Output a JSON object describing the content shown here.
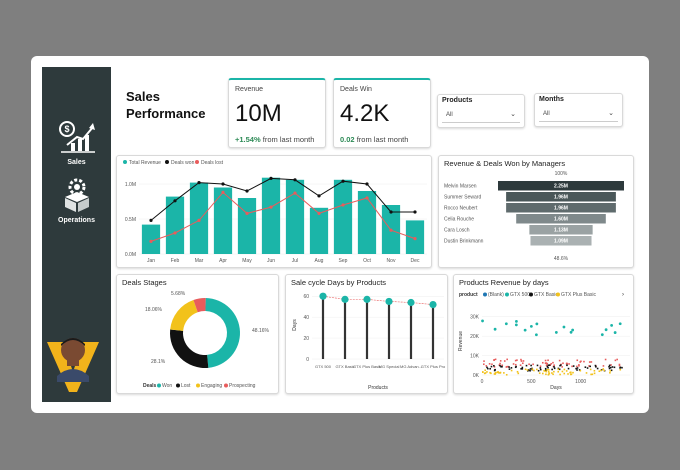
{
  "sidebar": {
    "items": [
      {
        "label": "Sales"
      },
      {
        "label": "Operations"
      }
    ]
  },
  "header": {
    "title_line1": "Sales",
    "title_line2": "Performance"
  },
  "kpis": [
    {
      "label": "Revenue",
      "value": "10M",
      "change": "+1.54%",
      "suffix": "from last month"
    },
    {
      "label": "Deals Win",
      "value": "4.2K",
      "change": "0.02",
      "suffix": "from last month"
    }
  ],
  "slicers": [
    {
      "label": "Products",
      "value": "All"
    },
    {
      "label": "Months",
      "value": "All"
    }
  ],
  "colors": {
    "teal": "#1bb5a8",
    "black": "#111111",
    "red": "#e85c5c",
    "yellow": "#f2c21b",
    "dark": "#2e3a3c"
  },
  "chart_data": [
    {
      "type": "bar",
      "title": "",
      "legend": [
        "Total Revenue",
        "Deals won",
        "Deals lost"
      ],
      "categories": [
        "Jan",
        "Feb",
        "Mar",
        "Apr",
        "May",
        "Jun",
        "Jul",
        "Aug",
        "Sep",
        "Oct",
        "Nov",
        "Dec"
      ],
      "y_ticks": [
        "0.0M",
        "0.5M",
        "1.0M"
      ],
      "ylim": [
        0,
        1.2
      ],
      "series": [
        {
          "name": "Total Revenue",
          "type": "bar",
          "values": [
            0.42,
            0.82,
            1.02,
            0.95,
            0.8,
            1.09,
            1.06,
            0.66,
            1.06,
            0.9,
            0.7,
            0.48
          ]
        },
        {
          "name": "Deals won",
          "type": "line",
          "values": [
            0.48,
            0.76,
            1.02,
            1.0,
            0.9,
            1.08,
            1.06,
            0.83,
            1.04,
            1.0,
            0.6,
            0.6
          ]
        },
        {
          "name": "Deals lost",
          "type": "line",
          "values": [
            0.18,
            0.3,
            0.48,
            0.88,
            0.58,
            0.67,
            0.87,
            0.58,
            0.7,
            0.8,
            0.34,
            0.22
          ]
        }
      ]
    },
    {
      "type": "bar",
      "title": "Revenue & Deals Won by Managers",
      "top_label": "100%",
      "bottom_label": "48.6%",
      "categories": [
        "Melvin Marsen",
        "Summer Seward",
        "Rocco Neubert",
        "Celia Rouche",
        "Cara Losch",
        "Dustin Brinkmann"
      ],
      "values": [
        2.25,
        1.96,
        1.96,
        1.6,
        1.13,
        1.09
      ],
      "labels": [
        "2.25M",
        "1.96M",
        "1.96M",
        "1.60M",
        "1.13M",
        "1.09M"
      ],
      "xlim": [
        0,
        2.25
      ]
    },
    {
      "type": "pie",
      "title": "Deals Stages",
      "legend_title": "Deals",
      "categories": [
        "Won",
        "Lost",
        "Engaging",
        "Prospecting"
      ],
      "values": [
        48.16,
        28.1,
        18.06,
        5.68
      ],
      "labels": [
        "48.16%",
        "28.1%",
        "18.06%",
        "5.68%"
      ]
    },
    {
      "type": "scatter",
      "title": "Sale cycle Days by Products",
      "categories": [
        "GTX 500",
        "GTX Basic",
        "GTX Plus Basic",
        "MG Special",
        "MG Advan...",
        "GTX Plus Pro"
      ],
      "values": [
        60,
        57,
        57,
        55,
        54,
        52
      ],
      "xlabel": "Products",
      "ylabel": "Days",
      "y_ticks": [
        "0",
        "20",
        "40",
        "60"
      ],
      "ylim": [
        0,
        65
      ]
    },
    {
      "type": "scatter",
      "title": "Products Revenue by days",
      "legend_title": "product",
      "legend": [
        "(Blank)",
        "GTX 500",
        "GTX Basic",
        "GTX Plus Basic"
      ],
      "xlabel": "Days",
      "ylabel": "Revenue",
      "y_ticks": [
        "0K",
        "10K",
        "20K",
        "30K"
      ],
      "x_ticks": [
        "0",
        "500",
        "1000"
      ],
      "ylim": [
        0,
        35
      ],
      "xlim": [
        0,
        1500
      ]
    }
  ]
}
